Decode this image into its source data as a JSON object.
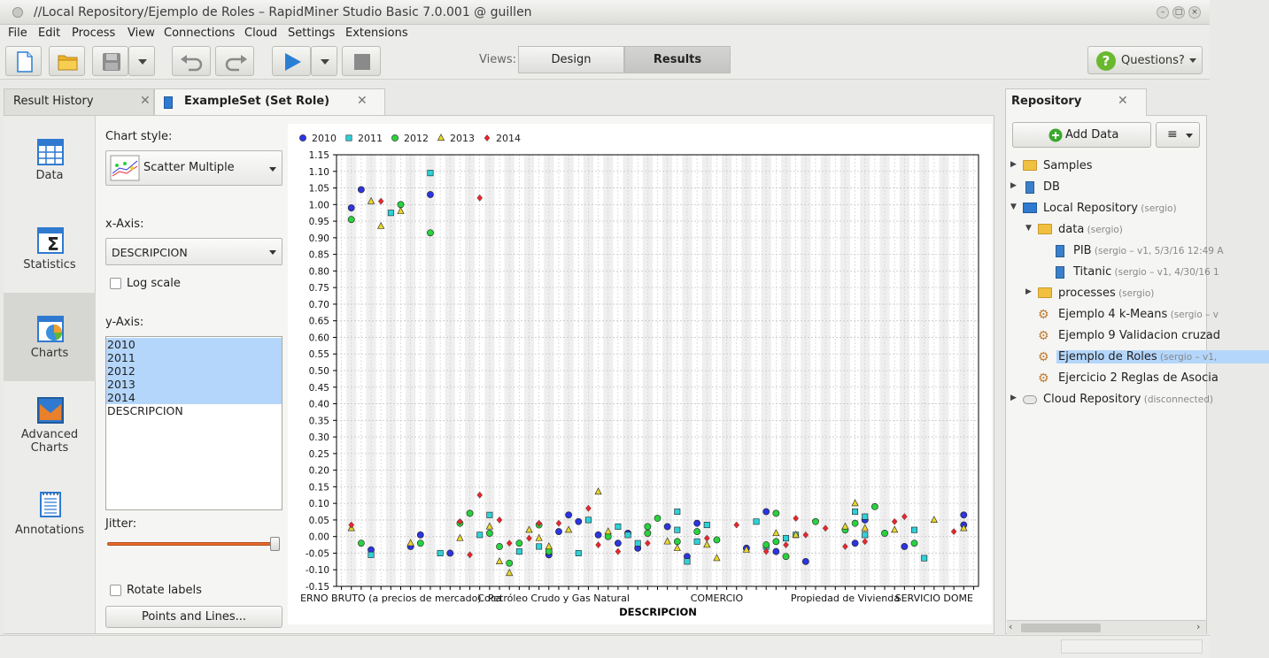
{
  "window": {
    "title": "//Local Repository/Ejemplo de Roles – RapidMiner Studio Basic 7.0.001 @ guillen"
  },
  "menu": [
    "File",
    "Edit",
    "Process",
    "View",
    "Connections",
    "Cloud",
    "Settings",
    "Extensions"
  ],
  "toolbar": {
    "views_label": "Views:",
    "design_label": "Design",
    "results_label": "Results",
    "questions_label": "Questions?"
  },
  "tabs": {
    "result_history": "Result History",
    "exampleset": "ExampleSet (Set Role)"
  },
  "nav": {
    "data": "Data",
    "statistics": "Statistics",
    "charts": "Charts",
    "advanced_1": "Advanced",
    "advanced_2": "Charts",
    "annotations": "Annotations"
  },
  "chart_settings": {
    "chart_style_label": "Chart style:",
    "chart_style_value": "Scatter Multiple",
    "x_axis_label": "x-Axis:",
    "x_axis_value": "DESCRIPCION",
    "log_scale_label": "Log scale",
    "y_axis_label": "y-Axis:",
    "y_axis_items": [
      {
        "label": "2010",
        "selected": true
      },
      {
        "label": "2011",
        "selected": true
      },
      {
        "label": "2012",
        "selected": true
      },
      {
        "label": "2013",
        "selected": true
      },
      {
        "label": "2014",
        "selected": true
      },
      {
        "label": "DESCRIPCION",
        "selected": false
      }
    ],
    "jitter_label": "Jitter:",
    "jitter_value": 1.0,
    "rotate_labels_label": "Rotate labels",
    "points_lines_button": "Points and Lines..."
  },
  "chart_data": {
    "type": "scatter",
    "xlabel": "DESCRIPCION",
    "ylim": [
      -0.15,
      1.15
    ],
    "ytick_step": 0.05,
    "legend_position": "top-left",
    "x_category_count": 65,
    "x_tick_labels": [
      {
        "label": "ERNO BRUTO (a precios de mercado)",
        "at": 5
      },
      {
        "label": "Coca",
        "at": 15
      },
      {
        "label": "Petróleo Crudo y Gas Natural",
        "at": 22
      },
      {
        "label": "COMERCIO",
        "at": 38
      },
      {
        "label": "Propiedad de Vivienda",
        "at": 51
      },
      {
        "label": "SERVICIO DOME",
        "at": 60
      }
    ],
    "series": [
      {
        "name": "2010",
        "color": "#2b35e0",
        "marker": "circle",
        "points": [
          [
            1,
            0.99
          ],
          [
            2,
            1.045
          ],
          [
            3,
            -0.04
          ],
          [
            7,
            -0.03
          ],
          [
            8,
            0.005
          ],
          [
            9,
            1.03
          ],
          [
            11,
            -0.05
          ],
          [
            21,
            -0.055
          ],
          [
            22,
            0.015
          ],
          [
            23,
            0.065
          ],
          [
            24,
            0.045
          ],
          [
            26,
            0.005
          ],
          [
            28,
            -0.02
          ],
          [
            29,
            0.01
          ],
          [
            30,
            -0.035
          ],
          [
            33,
            0.03
          ],
          [
            35,
            -0.06
          ],
          [
            36,
            0.04
          ],
          [
            41,
            -0.035
          ],
          [
            43,
            0.075
          ],
          [
            44,
            -0.045
          ],
          [
            47,
            -0.075
          ],
          [
            52,
            -0.02
          ],
          [
            53,
            0.05
          ],
          [
            57,
            -0.03
          ],
          [
            63,
            0.065
          ],
          [
            63,
            0.035
          ]
        ]
      },
      {
        "name": "2011",
        "color": "#2fd0d6",
        "marker": "square",
        "points": [
          [
            3,
            -0.055
          ],
          [
            5,
            0.975
          ],
          [
            9,
            1.095
          ],
          [
            10,
            -0.05
          ],
          [
            14,
            0.005
          ],
          [
            15,
            0.065
          ],
          [
            18,
            -0.045
          ],
          [
            20,
            -0.03
          ],
          [
            21,
            -0.045
          ],
          [
            24,
            -0.05
          ],
          [
            25,
            0.05
          ],
          [
            28,
            0.03
          ],
          [
            29,
            0.005
          ],
          [
            30,
            -0.02
          ],
          [
            34,
            0.075
          ],
          [
            34,
            0.02
          ],
          [
            35,
            -0.075
          ],
          [
            36,
            -0.015
          ],
          [
            37,
            0.035
          ],
          [
            42,
            0.045
          ],
          [
            43,
            -0.03
          ],
          [
            45,
            -0.005
          ],
          [
            46,
            0.005
          ],
          [
            52,
            0.075
          ],
          [
            53,
            0.06
          ],
          [
            53,
            0.005
          ],
          [
            58,
            0.02
          ],
          [
            59,
            -0.065
          ]
        ]
      },
      {
        "name": "2012",
        "color": "#29d23e",
        "marker": "circle",
        "points": [
          [
            1,
            0.955
          ],
          [
            2,
            -0.02
          ],
          [
            6,
            1.0
          ],
          [
            8,
            -0.02
          ],
          [
            9,
            0.915
          ],
          [
            12,
            0.04
          ],
          [
            13,
            0.07
          ],
          [
            15,
            0.01
          ],
          [
            16,
            -0.03
          ],
          [
            17,
            -0.08
          ],
          [
            18,
            -0.02
          ],
          [
            20,
            0.035
          ],
          [
            21,
            -0.045
          ],
          [
            27,
            0.0
          ],
          [
            31,
            0.03
          ],
          [
            31,
            0.01
          ],
          [
            32,
            0.055
          ],
          [
            34,
            -0.015
          ],
          [
            36,
            0.015
          ],
          [
            38,
            -0.01
          ],
          [
            43,
            -0.025
          ],
          [
            44,
            0.07
          ],
          [
            44,
            -0.015
          ],
          [
            45,
            -0.06
          ],
          [
            48,
            0.045
          ],
          [
            51,
            0.02
          ],
          [
            52,
            0.04
          ],
          [
            54,
            0.09
          ],
          [
            55,
            0.01
          ],
          [
            58,
            -0.02
          ]
        ]
      },
      {
        "name": "2013",
        "color": "#ead52c",
        "marker": "triangle",
        "points": [
          [
            1,
            0.025
          ],
          [
            3,
            1.01
          ],
          [
            4,
            0.935
          ],
          [
            6,
            0.98
          ],
          [
            7,
            -0.02
          ],
          [
            12,
            -0.005
          ],
          [
            15,
            0.03
          ],
          [
            16,
            -0.075
          ],
          [
            17,
            -0.11
          ],
          [
            19,
            0.02
          ],
          [
            20,
            -0.005
          ],
          [
            21,
            -0.03
          ],
          [
            23,
            0.02
          ],
          [
            26,
            0.135
          ],
          [
            27,
            0.015
          ],
          [
            33,
            -0.015
          ],
          [
            34,
            -0.035
          ],
          [
            37,
            -0.025
          ],
          [
            38,
            -0.065
          ],
          [
            41,
            -0.04
          ],
          [
            44,
            0.01
          ],
          [
            46,
            0.005
          ],
          [
            51,
            0.03
          ],
          [
            52,
            0.1
          ],
          [
            53,
            0.025
          ],
          [
            56,
            0.02
          ],
          [
            60,
            0.05
          ],
          [
            63,
            0.025
          ]
        ]
      },
      {
        "name": "2014",
        "color": "#e8262c",
        "marker": "diamond",
        "points": [
          [
            1,
            0.035
          ],
          [
            4,
            1.01
          ],
          [
            12,
            0.045
          ],
          [
            13,
            -0.055
          ],
          [
            14,
            1.02
          ],
          [
            14,
            0.125
          ],
          [
            16,
            0.05
          ],
          [
            17,
            -0.02
          ],
          [
            19,
            -0.005
          ],
          [
            20,
            0.04
          ],
          [
            22,
            0.04
          ],
          [
            25,
            0.085
          ],
          [
            26,
            -0.025
          ],
          [
            28,
            -0.045
          ],
          [
            31,
            -0.02
          ],
          [
            37,
            -0.005
          ],
          [
            40,
            0.035
          ],
          [
            43,
            -0.045
          ],
          [
            45,
            -0.025
          ],
          [
            46,
            0.055
          ],
          [
            47,
            0.005
          ],
          [
            49,
            0.025
          ],
          [
            51,
            -0.03
          ],
          [
            53,
            -0.015
          ],
          [
            56,
            0.045
          ],
          [
            57,
            0.06
          ],
          [
            62,
            0.015
          ]
        ]
      }
    ]
  },
  "repository": {
    "title": "Repository",
    "add_data": "Add Data",
    "items": [
      {
        "label": "Samples",
        "sub": "",
        "icon": "folder",
        "expander": "closed",
        "indent": 0
      },
      {
        "label": "DB",
        "sub": "",
        "icon": "db",
        "expander": "closed",
        "indent": 0
      },
      {
        "label": "Local Repository",
        "sub": "(sergio)",
        "icon": "monitor",
        "expander": "open",
        "indent": 0
      },
      {
        "label": "data",
        "sub": "(sergio)",
        "icon": "folder",
        "expander": "open",
        "indent": 1
      },
      {
        "label": "PIB",
        "sub": "(sergio – v1, 5/3/16 12:49 A",
        "icon": "file",
        "expander": "",
        "indent": 2
      },
      {
        "label": "Titanic",
        "sub": "(sergio – v1, 4/30/16 1",
        "icon": "file",
        "expander": "",
        "indent": 2
      },
      {
        "label": "processes",
        "sub": "(sergio)",
        "icon": "folder",
        "expander": "closed",
        "indent": 1
      },
      {
        "label": "Ejemplo 4 k-Means",
        "sub": "(sergio – v",
        "icon": "gear",
        "expander": "",
        "indent": 1
      },
      {
        "label": "Ejemplo 9 Validacion cruzad",
        "sub": "",
        "icon": "gear",
        "expander": "",
        "indent": 1
      },
      {
        "label": "Ejemplo de Roles",
        "sub": "(sergio – v1,",
        "icon": "gear",
        "expander": "",
        "indent": 1,
        "selected": true
      },
      {
        "label": "Ejercicio 2 Reglas de Asocia",
        "sub": "",
        "icon": "gear",
        "expander": "",
        "indent": 1
      },
      {
        "label": "Cloud Repository",
        "sub": "(disconnected)",
        "icon": "cloud",
        "expander": "closed",
        "indent": 0
      }
    ]
  },
  "colors": {
    "accent_selection": "#b4d6fb",
    "jitter_track": "#e86a2c",
    "run_arrow": "#2a7fd4"
  }
}
